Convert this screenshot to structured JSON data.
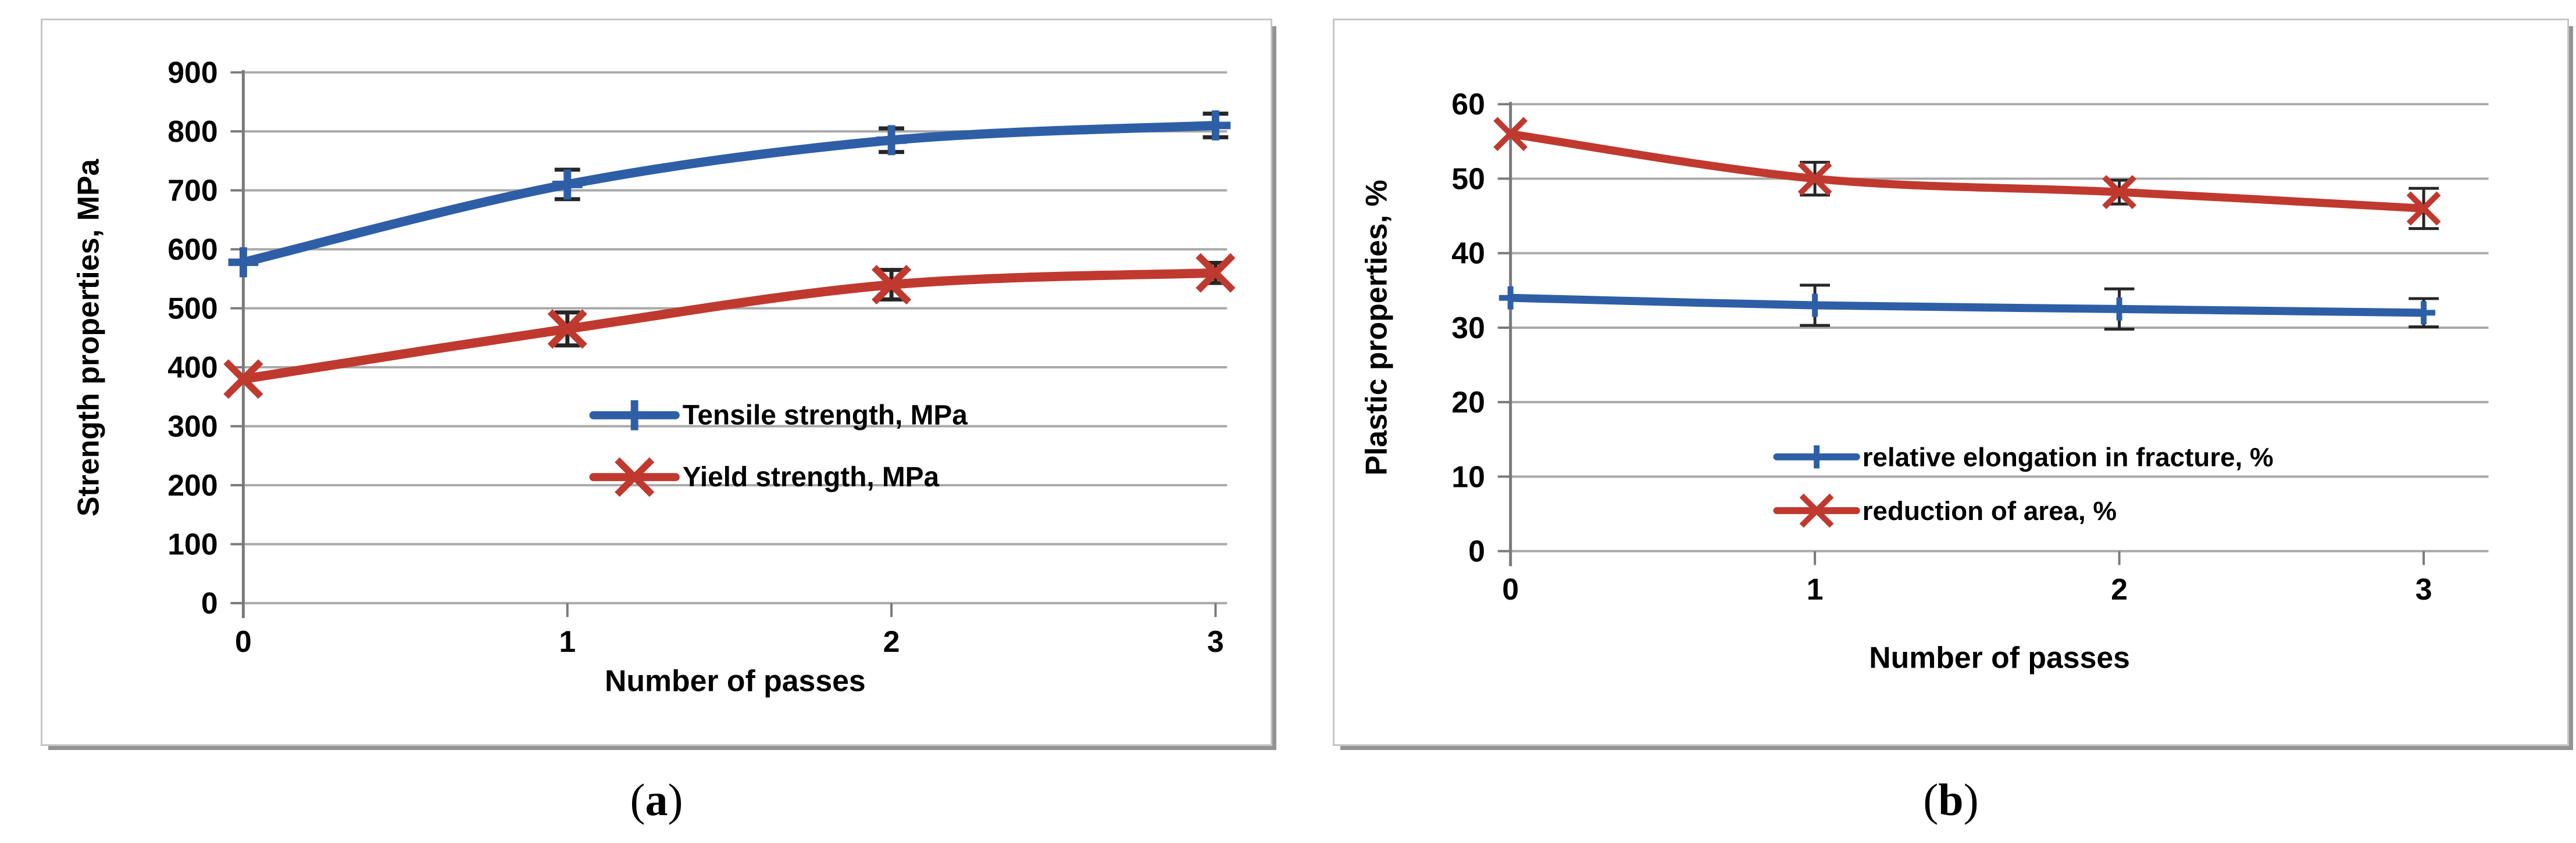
{
  "captions": {
    "a": {
      "open": "(",
      "letter": "a",
      "close": ")"
    },
    "b": {
      "open": "(",
      "letter": "b",
      "close": ")"
    }
  },
  "colors": {
    "series_blue": "#2e5fa6",
    "series_red": "#c0392f",
    "gridline": "#a9a9a9",
    "axis": "#7a7a7a",
    "error_bar": "#262626",
    "text": "#000000",
    "panel_border": "#c6c6c6",
    "panel_shadow": "#949494"
  },
  "chart_data": [
    {
      "key": "a",
      "type": "line",
      "title": "",
      "xlabel": "Number of passes",
      "ylabel": "Strength properties, MPa",
      "ylim": [
        0,
        900
      ],
      "yticks": [
        0,
        100,
        200,
        300,
        400,
        500,
        600,
        700,
        800,
        900
      ],
      "categories": [
        "0",
        "1",
        "2",
        "3"
      ],
      "x": [
        0,
        1,
        2,
        3
      ],
      "grid": "horizontal",
      "legend_position": "inside-center",
      "series": [
        {
          "name": "Tensile strength, MPa",
          "color": "#2e5fa6",
          "marker": "plus",
          "values": [
            578,
            710,
            785,
            810
          ],
          "errors": [
            0,
            25,
            20,
            20
          ]
        },
        {
          "name": "Yield  strength, MPa",
          "color": "#c0392f",
          "marker": "x",
          "values": [
            380,
            465,
            540,
            560
          ],
          "errors": [
            0,
            28,
            25,
            17
          ]
        }
      ]
    },
    {
      "key": "b",
      "type": "line",
      "title": "",
      "xlabel": "Number of passes",
      "ylabel": "Plastic properties, %",
      "ylim": [
        0,
        60
      ],
      "yticks": [
        0,
        10,
        20,
        30,
        40,
        50,
        60
      ],
      "categories": [
        "0",
        "1",
        "2",
        "3"
      ],
      "x": [
        0,
        1,
        2,
        3
      ],
      "grid": "horizontal",
      "legend_position": "inside-bottom",
      "series": [
        {
          "name": "relative elongation in fracture, %",
          "color": "#2e5fa6",
          "marker": "plus",
          "values": [
            34,
            33,
            32.5,
            32
          ],
          "errors": [
            0,
            2.7,
            2.7,
            1.9
          ]
        },
        {
          "name": "reduction of area, %",
          "color": "#c0392f",
          "marker": "x",
          "values": [
            56,
            50,
            48.2,
            46
          ],
          "errors": [
            0,
            2.2,
            1.6,
            2.7
          ]
        }
      ]
    }
  ]
}
